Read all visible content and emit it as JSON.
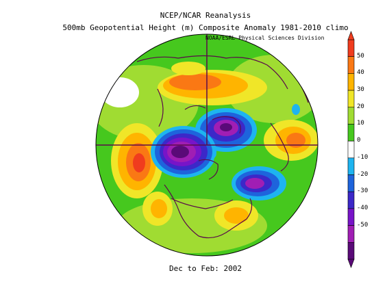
{
  "titles": {
    "line1": "NCEP/NCAR Reanalysis",
    "line2": "500mb Geopotential Height (m) Composite Anomaly 1981-2010 climo",
    "credit": "NOAA/ESRL Physical Sciences Division",
    "period": "Dec to Feb: 2002"
  },
  "colorbar": {
    "labels": [
      "50",
      "40",
      "30",
      "20",
      "10",
      "0",
      "-10",
      "-20",
      "-30",
      "-40",
      "-50"
    ],
    "colors": [
      "#f03c1e",
      "#fa7814",
      "#ffb400",
      "#f0e628",
      "#a0dc32",
      "#46c81e",
      "#ffffff",
      "#1eb4f0",
      "#1e64dc",
      "#3c28c8",
      "#7814c8",
      "#a01eb4",
      "#5a0a78"
    ]
  }
}
